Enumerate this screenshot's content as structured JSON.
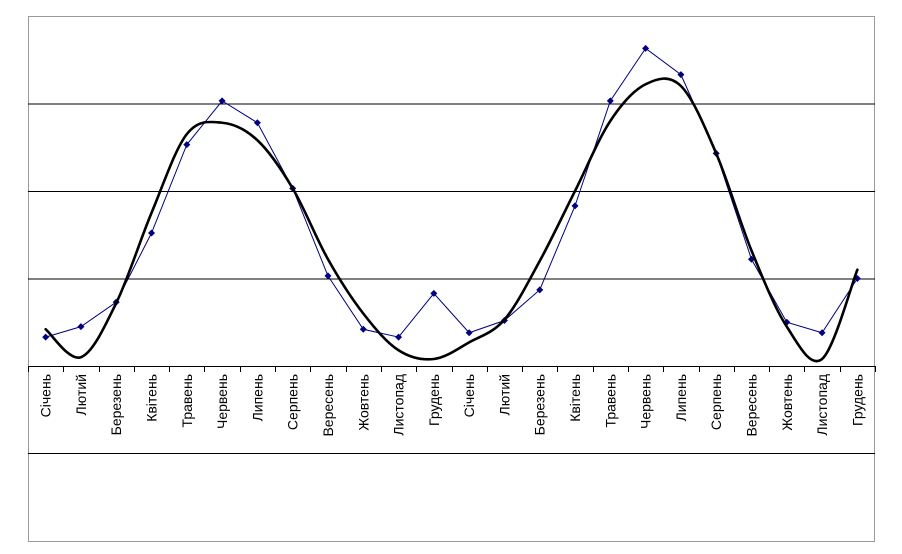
{
  "chart_data": {
    "type": "line",
    "title": "",
    "xlabel": "",
    "ylabel": "",
    "ylim": [
      0,
      4
    ],
    "grid": true,
    "categories": [
      "Січень",
      "Лютий",
      "Березень",
      "Квітень",
      "Травень",
      "Червень",
      "Липень",
      "Серпень",
      "Вересень",
      "Жовтень",
      "Листопад",
      "Грудень",
      "Січень",
      "Лютий",
      "Березень",
      "Квітень",
      "Травень",
      "Червень",
      "Липень",
      "Серпень",
      "Вересень",
      "Жовтень",
      "Листопад",
      "Грудень"
    ],
    "series": [
      {
        "name": "",
        "kind": "data",
        "color": "#000080",
        "values": [
          0.33,
          0.45,
          0.73,
          1.52,
          2.53,
          3.03,
          2.78,
          2.03,
          1.03,
          0.42,
          0.33,
          0.83,
          0.38,
          0.52,
          0.87,
          1.83,
          3.03,
          3.63,
          3.33,
          2.43,
          1.22,
          0.5,
          0.38,
          1.0
        ]
      },
      {
        "name": "",
        "kind": "trend",
        "color": "#000000",
        "values": [
          0.42,
          0.1,
          0.72,
          1.75,
          2.65,
          2.78,
          2.58,
          2.03,
          1.22,
          0.6,
          0.18,
          0.08,
          0.27,
          0.53,
          1.2,
          2.0,
          2.8,
          3.22,
          3.2,
          2.43,
          1.32,
          0.45,
          0.08,
          1.1
        ]
      }
    ]
  }
}
